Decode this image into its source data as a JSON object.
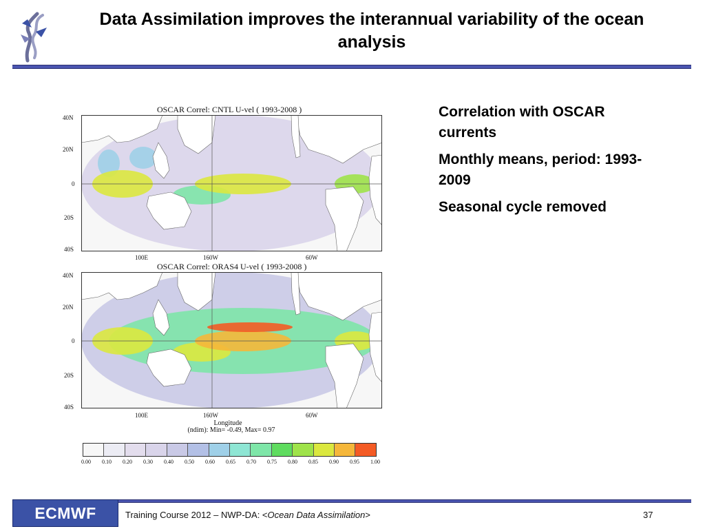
{
  "slide": {
    "title": "Data Assimilation improves the interannual variability of the ocean analysis",
    "bullets": [
      "Correlation with OSCAR currents",
      "Monthly means, period: 1993-2009",
      "Seasonal cycle removed"
    ]
  },
  "footer": {
    "logo_text": "ECMWF",
    "course_prefix": "Training Course 2012 – NWP-DA: <",
    "course_topic": "Ocean Data Assimilation",
    "course_suffix": ">",
    "page_number": "37"
  },
  "colors": {
    "title_rule": "#4a55b0",
    "logo_background": "#3b52a6",
    "land": "#ffffff",
    "map_border": "#333333"
  },
  "chart_data": [
    {
      "type": "heatmap",
      "title": "OSCAR Correl: CNTL U-vel  ( 1993-2008 )",
      "lat_ticks": [
        "40N",
        "20N",
        "0",
        "20S",
        "40S"
      ],
      "lon_ticks": [
        "100E",
        "160W",
        "60W"
      ],
      "xlabel": "",
      "grid": "equator and 160W reference lines",
      "regions": [
        {
          "area": "equatorial Indian Ocean",
          "value": 0.85
        },
        {
          "area": "Bay of Bengal",
          "value": 0.6
        },
        {
          "area": "central/eastern equatorial Pacific",
          "value": 0.85
        },
        {
          "area": "western equatorial Pacific",
          "value": 0.7
        },
        {
          "area": "equatorial Atlantic",
          "value": 0.8
        },
        {
          "area": "north Indian Ocean",
          "value": 0.6
        },
        {
          "area": "extratropics",
          "value": 0.3
        }
      ]
    },
    {
      "type": "heatmap",
      "title": "OSCAR Correl: ORAS4 U-vel  ( 1993-2008 )",
      "lat_ticks": [
        "40N",
        "20N",
        "0",
        "20S",
        "40S"
      ],
      "lon_ticks": [
        "100E",
        "160W",
        "60W"
      ],
      "xlabel": "Longitude",
      "stats": "(ndim): Min= -0.49, Max= 0.97",
      "grid": "equator and 160W reference lines",
      "regions": [
        {
          "area": "central equatorial Pacific north band",
          "value": 0.95
        },
        {
          "area": "central/eastern equatorial Pacific",
          "value": 0.9
        },
        {
          "area": "western equatorial Pacific",
          "value": 0.85
        },
        {
          "area": "equatorial Indian Ocean",
          "value": 0.88
        },
        {
          "area": "equatorial Atlantic",
          "value": 0.85
        },
        {
          "area": "tropical band",
          "value": 0.7
        },
        {
          "area": "extratropics",
          "value": 0.4
        }
      ]
    }
  ],
  "colorbar": {
    "ticks": [
      "0.00",
      "0.10",
      "0.20",
      "0.30",
      "0.40",
      "0.50",
      "0.60",
      "0.65",
      "0.70",
      "0.75",
      "0.80",
      "0.85",
      "0.90",
      "0.95",
      "1.00"
    ],
    "colors": [
      "#f7f7f7",
      "#ececf4",
      "#e3dded",
      "#d9d4ea",
      "#c9c9e6",
      "#b3c0e6",
      "#9fd0e8",
      "#8ee6d4",
      "#7ee6a8",
      "#5fdc5f",
      "#9fe34a",
      "#dbe83f",
      "#f5b73a",
      "#f45b25"
    ]
  }
}
